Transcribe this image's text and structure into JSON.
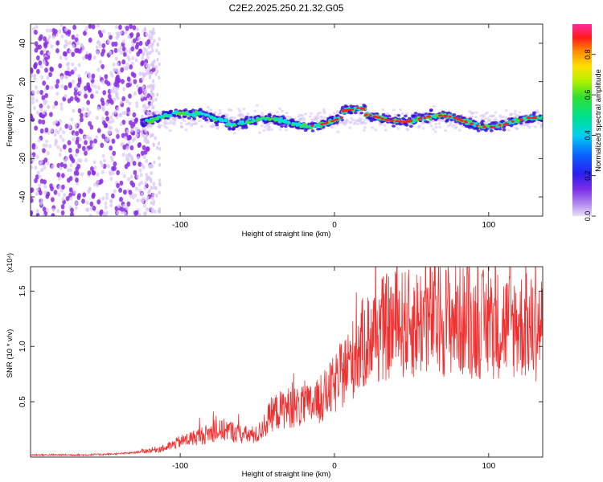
{
  "figure": {
    "title": "C2E2.2025.250.21.32.G05"
  },
  "colors": {
    "background": "#ffffff",
    "snr_line": "#f03030",
    "points_low": "#8a2be2",
    "points_faint": "#d9c6f5",
    "band_cyan": "#00e0e0",
    "band_green": "#40e040",
    "band_red": "#ff2020"
  },
  "chart_data": [
    {
      "type": "scatter",
      "title": "C2E2.2025.250.21.32.G05",
      "xlabel": "Height of straight line (km)",
      "ylabel": "Frequency (Hz)",
      "xlim": [
        -197,
        135
      ],
      "ylim": [
        -50,
        50
      ],
      "xticks": [
        -100,
        0,
        100
      ],
      "yticks": [
        -40,
        -20,
        0,
        20,
        40
      ],
      "grid": false,
      "colorbar": {
        "label": "Normalized spectral amplitude",
        "range": [
          0,
          0.95
        ],
        "ticks": [
          "0.0",
          "0.2",
          "0.4",
          "0.6",
          "0.8"
        ],
        "colormap": "rainbow"
      },
      "description_series": [
        {
          "x_range": [
            -197,
            -120
          ],
          "freq_range": [
            -50,
            50
          ],
          "amplitude": "low"
        },
        {
          "x_range": [
            -120,
            135
          ],
          "freq_center": 0,
          "freq_spread": 4,
          "amplitude": "high"
        }
      ]
    },
    {
      "type": "line",
      "xlabel": "Height of straight line (km)",
      "ylabel": "SNR (10 * v/v)",
      "y_multiplier": "(x10⁴)",
      "xlim": [
        -197,
        135
      ],
      "ylim": [
        0,
        1.72
      ],
      "xticks": [
        -100,
        0,
        100
      ],
      "yticks": [
        0.5,
        1.0,
        1.5
      ],
      "grid": false,
      "series": [
        {
          "x": [
            -197,
            -180,
            -160,
            -140,
            -130,
            -120,
            -110,
            -100,
            -90,
            -80,
            -70,
            -60,
            -50,
            -40,
            -30,
            -20,
            -10,
            0,
            5,
            10,
            20,
            30,
            40,
            50,
            60,
            70,
            80,
            90,
            100,
            110,
            120,
            130,
            135
          ],
          "values": [
            0.02,
            0.02,
            0.02,
            0.03,
            0.04,
            0.06,
            0.08,
            0.14,
            0.18,
            0.22,
            0.25,
            0.2,
            0.2,
            0.4,
            0.45,
            0.45,
            0.5,
            0.65,
            0.75,
            0.85,
            1.05,
            1.15,
            1.2,
            1.2,
            1.25,
            1.25,
            1.25,
            1.2,
            1.2,
            1.2,
            1.2,
            1.15,
            1.2
          ]
        }
      ]
    }
  ]
}
